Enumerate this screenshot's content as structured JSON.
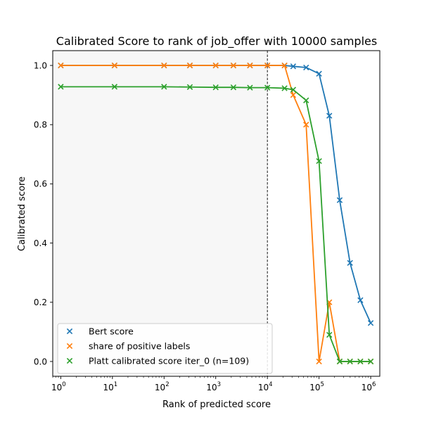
{
  "chart_data": {
    "type": "line",
    "title": "Calibrated Score to rank of job_offer with 10000 samples",
    "xlabel": "Rank of predicted score",
    "ylabel": "Calibrated score",
    "xscale": "log",
    "xlim": [
      0.7,
      1500000
    ],
    "ylim": [
      -0.05,
      1.05
    ],
    "grid": false,
    "legend_position": "lower-left",
    "xticks": [
      {
        "value": 1,
        "base": "10",
        "exp": "0"
      },
      {
        "value": 10,
        "base": "10",
        "exp": "1"
      },
      {
        "value": 100,
        "base": "10",
        "exp": "2"
      },
      {
        "value": 1000,
        "base": "10",
        "exp": "3"
      },
      {
        "value": 10000,
        "base": "10",
        "exp": "4"
      },
      {
        "value": 100000,
        "base": "10",
        "exp": "5"
      },
      {
        "value": 1000000,
        "base": "10",
        "exp": "6"
      }
    ],
    "yticks": [
      {
        "value": 0.0,
        "label": "0.0"
      },
      {
        "value": 0.2,
        "label": "0.2"
      },
      {
        "value": 0.4,
        "label": "0.4"
      },
      {
        "value": 0.6,
        "label": "0.6"
      },
      {
        "value": 0.8,
        "label": "0.8"
      },
      {
        "value": 1.0,
        "label": "1.0"
      }
    ],
    "threshold": {
      "x": 10000,
      "style": "dashed",
      "shade_color": "#f7f7f7"
    },
    "series": [
      {
        "name": "Bert score",
        "color": "#1f77b4",
        "marker": "x",
        "x": [
          1,
          11,
          100,
          316,
          1000,
          2200,
          4600,
          10000,
          21500,
          31600,
          56200,
          100000,
          158000,
          251000,
          398000,
          631000,
          1000000
        ],
        "y": [
          1.0,
          1.0,
          1.0,
          1.0,
          1.0,
          1.0,
          1.0,
          1.0,
          1.0,
          0.997,
          0.993,
          0.972,
          0.83,
          0.545,
          0.333,
          0.207,
          0.13
        ]
      },
      {
        "name": "share of positive labels",
        "color": "#ff7f0e",
        "marker": "x",
        "x": [
          1,
          11,
          100,
          316,
          1000,
          2200,
          4600,
          10000,
          21500,
          31600,
          56200,
          100000,
          158000,
          251000,
          398000,
          631000,
          1000000
        ],
        "y": [
          1.0,
          1.0,
          1.0,
          1.0,
          1.0,
          1.0,
          1.0,
          1.0,
          1.0,
          0.9,
          0.8,
          0.0,
          0.2,
          0.0,
          0.0,
          0.0,
          0.0
        ]
      },
      {
        "name": "Platt calibrated score iter_0 (n=109)",
        "color": "#2ca02c",
        "marker": "x",
        "x": [
          1,
          11,
          100,
          316,
          1000,
          2200,
          4600,
          10000,
          21500,
          31600,
          56200,
          100000,
          158000,
          251000,
          398000,
          631000,
          1000000
        ],
        "y": [
          0.928,
          0.928,
          0.928,
          0.927,
          0.926,
          0.926,
          0.925,
          0.925,
          0.923,
          0.918,
          0.882,
          0.677,
          0.09,
          0.0,
          0.0,
          0.0,
          0.0
        ]
      }
    ]
  }
}
